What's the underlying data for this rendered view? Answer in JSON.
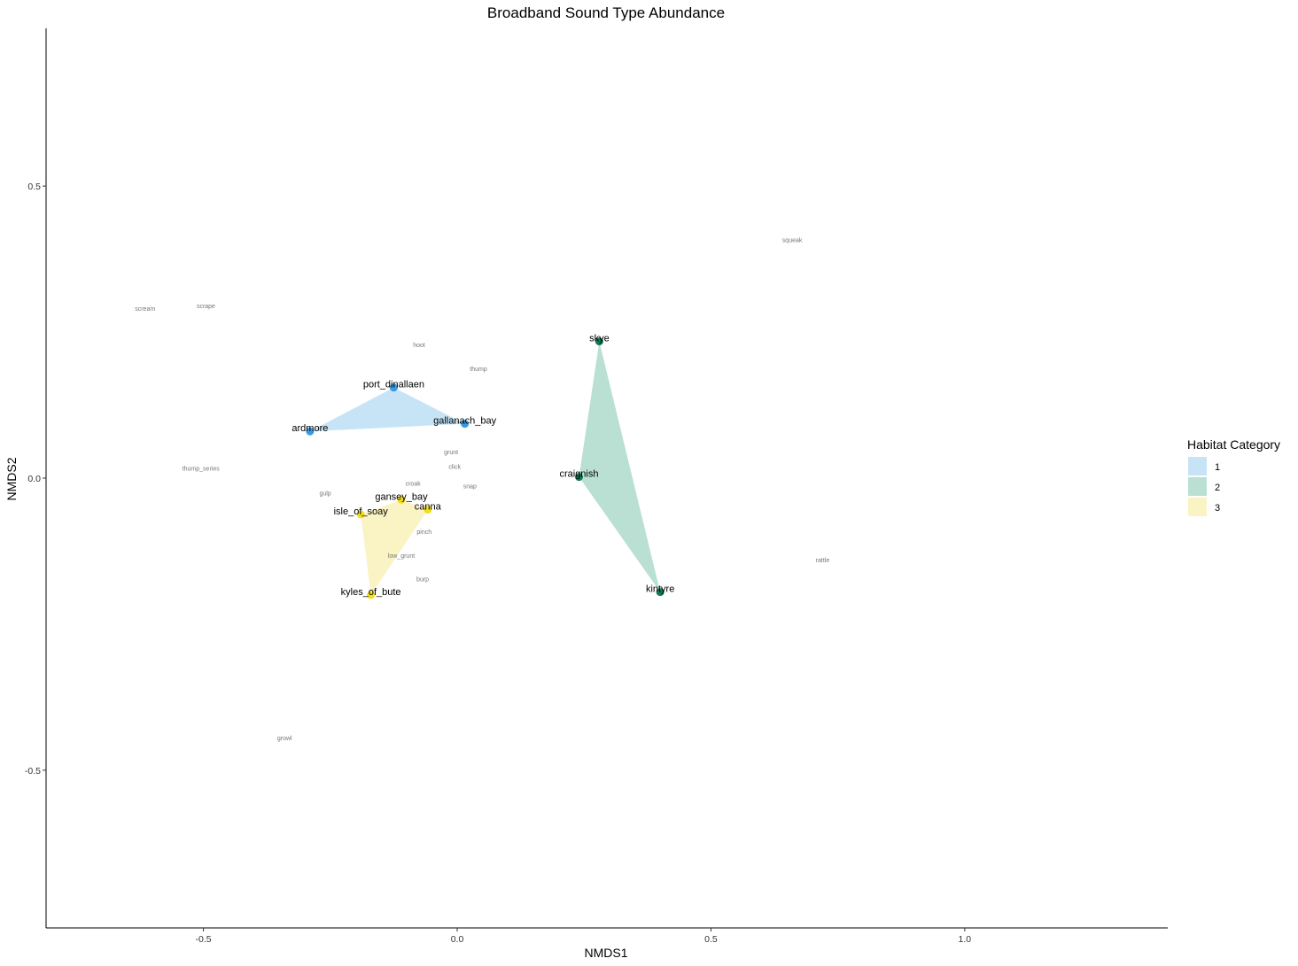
{
  "chart_data": {
    "type": "scatter",
    "title": "Broadband Sound Type Abundance",
    "xlabel": "NMDS1",
    "ylabel": "NMDS2",
    "xlim": [
      -0.81,
      1.4
    ],
    "ylim": [
      -0.77,
      0.77
    ],
    "xticks": [
      -0.5,
      0.0,
      0.5,
      1.0
    ],
    "xtick_labels": [
      "-0.5",
      "0.0",
      "0.5",
      "1.0"
    ],
    "yticks": [
      0.5,
      0.0,
      -0.5
    ],
    "ytick_labels": [
      "0.5",
      "0.0",
      "-0.5"
    ],
    "grid": false,
    "legend": {
      "title": "Habitat Category",
      "placement": "right",
      "entries": [
        {
          "label": "1",
          "fill": "#c7e4f6"
        },
        {
          "label": "2",
          "fill": "#b9e0d3"
        },
        {
          "label": "3",
          "fill": "#faf3c3"
        }
      ]
    },
    "groups": [
      {
        "name": "1",
        "hull_color": "#c7e4f6",
        "point_color": "#3a9ae0",
        "sites": [
          {
            "label": "port_dinallaen",
            "x": -0.125,
            "y": 0.155
          },
          {
            "label": "ardmore",
            "x": -0.29,
            "y": 0.08
          },
          {
            "label": "gallanach_bay",
            "x": 0.015,
            "y": 0.093
          }
        ]
      },
      {
        "name": "2",
        "hull_color": "#b9e0d3",
        "point_color": "#137a55",
        "sites": [
          {
            "label": "skye",
            "x": 0.28,
            "y": 0.234
          },
          {
            "label": "craignish",
            "x": 0.24,
            "y": 0.002
          },
          {
            "label": "kintyre",
            "x": 0.4,
            "y": -0.195
          }
        ]
      },
      {
        "name": "3",
        "hull_color": "#faf3c3",
        "point_color": "#f1de22",
        "sites": [
          {
            "label": "gansey_bay",
            "x": -0.11,
            "y": -0.037
          },
          {
            "label": "canna",
            "x": -0.058,
            "y": -0.054
          },
          {
            "label": "isle_of_soay",
            "x": -0.19,
            "y": -0.062
          },
          {
            "label": "kyles_of_bute",
            "x": -0.17,
            "y": -0.2
          }
        ]
      }
    ],
    "species": [
      {
        "label": "squeak",
        "x": 0.66,
        "y": 0.408
      },
      {
        "label": "scream",
        "x": -0.615,
        "y": 0.29
      },
      {
        "label": "scrape",
        "x": -0.495,
        "y": 0.295
      },
      {
        "label": "hoot",
        "x": -0.075,
        "y": 0.228
      },
      {
        "label": "thump",
        "x": 0.042,
        "y": 0.187
      },
      {
        "label": "grunt",
        "x": -0.012,
        "y": 0.045
      },
      {
        "label": "click",
        "x": -0.005,
        "y": 0.02
      },
      {
        "label": "thump_series",
        "x": -0.505,
        "y": 0.017
      },
      {
        "label": "croak",
        "x": -0.087,
        "y": -0.009
      },
      {
        "label": "snap",
        "x": 0.025,
        "y": -0.014
      },
      {
        "label": "gulp",
        "x": -0.26,
        "y": -0.026
      },
      {
        "label": "pinch",
        "x": -0.065,
        "y": -0.092
      },
      {
        "label": "low_grunt",
        "x": -0.11,
        "y": -0.133
      },
      {
        "label": "burp",
        "x": -0.068,
        "y": -0.173
      },
      {
        "label": "rattle",
        "x": 0.72,
        "y": -0.14
      },
      {
        "label": "growl",
        "x": -0.34,
        "y": -0.445
      }
    ]
  }
}
